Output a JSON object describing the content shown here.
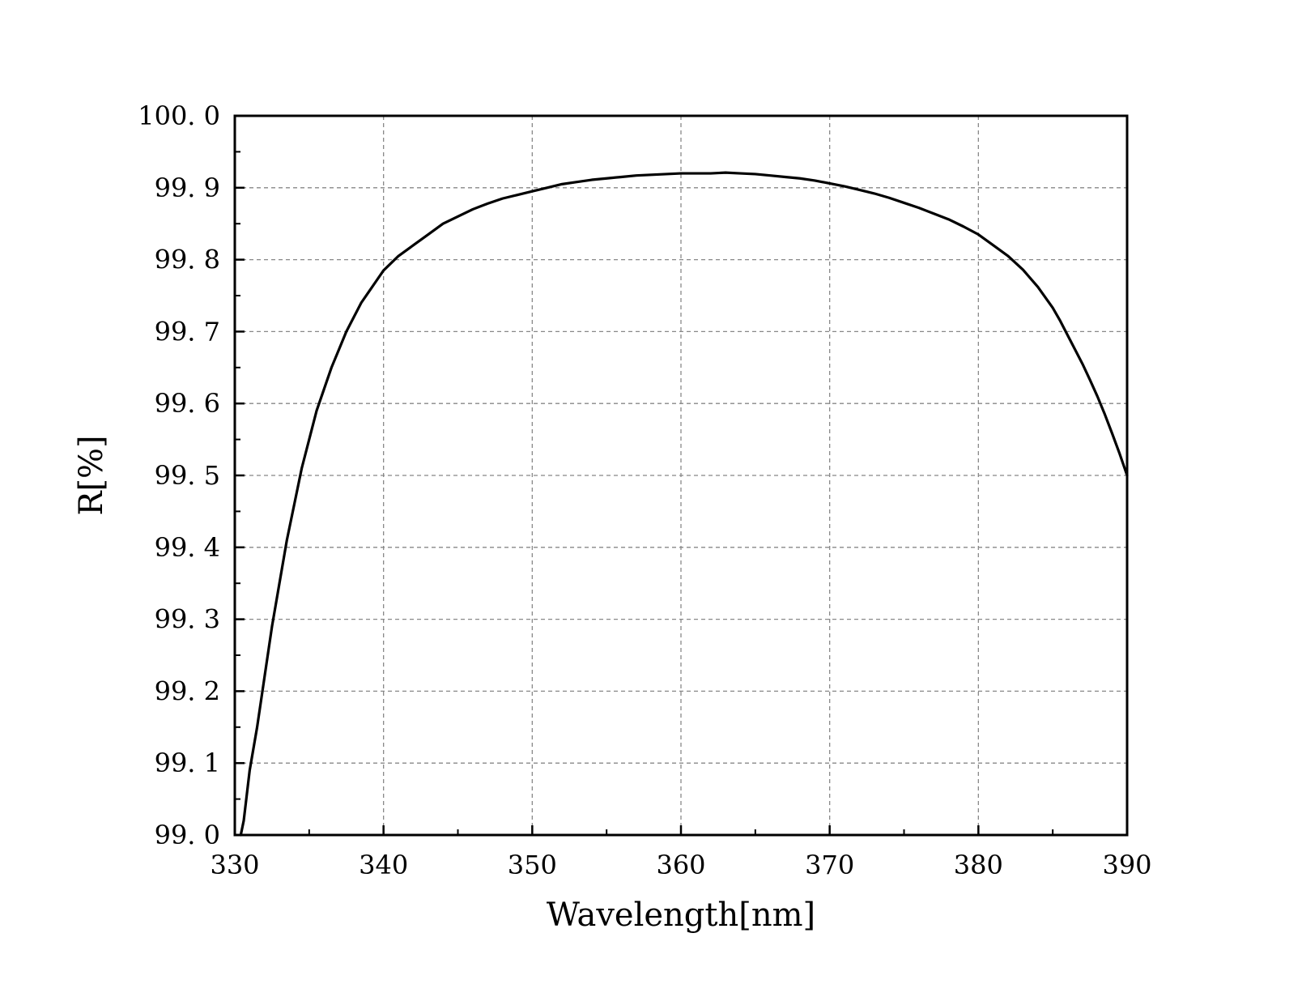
{
  "chart_data": {
    "type": "line",
    "title": "",
    "xlabel": "Wavelength[nm]",
    "ylabel": "R[%]",
    "xlim": [
      330,
      390
    ],
    "ylim": [
      99.0,
      100.0
    ],
    "grid": true,
    "x_ticks": [
      330,
      340,
      350,
      360,
      370,
      380,
      390
    ],
    "x_tick_labels": [
      "330",
      "340",
      "350",
      "360",
      "370",
      "380",
      "390"
    ],
    "y_ticks": [
      99.0,
      99.1,
      99.2,
      99.3,
      99.4,
      99.5,
      99.6,
      99.7,
      99.8,
      99.9,
      100.0
    ],
    "y_tick_labels": [
      "99. 0",
      "99. 1",
      "99. 2",
      "99. 3",
      "99. 4",
      "99. 5",
      "99. 6",
      "99. 7",
      "99. 8",
      "99. 9",
      "100. 0"
    ],
    "line_color": "#000000",
    "grid_color": "#888888",
    "series": [
      {
        "x": [
          330.4,
          330.6,
          331.0,
          331.5,
          332.0,
          332.5,
          333.0,
          333.5,
          334.0,
          334.5,
          335.0,
          335.5,
          336.0,
          336.5,
          337.0,
          337.5,
          338.0,
          338.5,
          339.0,
          339.5,
          340.0,
          341.0,
          342.0,
          343.0,
          344.0,
          345.0,
          346.0,
          347.0,
          348.0,
          349.0,
          350.0,
          351.0,
          352.0,
          353.0,
          354.0,
          355.0,
          356.0,
          357.0,
          358.0,
          359.0,
          360.0,
          361.0,
          362.0,
          363.0,
          364.0,
          365.0,
          366.0,
          367.0,
          368.0,
          369.0,
          370.0,
          371.0,
          372.0,
          373.0,
          374.0,
          375.0,
          376.0,
          377.0,
          378.0,
          379.0,
          380.0,
          381.0,
          382.0,
          383.0,
          384.0,
          385.0,
          385.5,
          386.0,
          386.5,
          387.0,
          387.5,
          388.0,
          388.5,
          389.0,
          389.5,
          390.0
        ],
        "y": [
          99.0,
          99.02,
          99.09,
          99.15,
          99.22,
          99.29,
          99.35,
          99.41,
          99.46,
          99.51,
          99.55,
          99.59,
          99.62,
          99.65,
          99.675,
          99.7,
          99.72,
          99.74,
          99.755,
          99.77,
          99.785,
          99.805,
          99.82,
          99.835,
          99.85,
          99.86,
          99.87,
          99.878,
          99.885,
          99.89,
          99.895,
          99.9,
          99.905,
          99.908,
          99.911,
          99.913,
          99.915,
          99.917,
          99.918,
          99.919,
          99.92,
          99.92,
          99.92,
          99.921,
          99.92,
          99.919,
          99.917,
          99.915,
          99.913,
          99.91,
          99.906,
          99.902,
          99.897,
          99.892,
          99.886,
          99.879,
          99.872,
          99.864,
          99.856,
          99.846,
          99.835,
          99.82,
          99.805,
          99.786,
          99.762,
          99.733,
          99.715,
          99.695,
          99.675,
          99.655,
          99.633,
          99.61,
          99.585,
          99.558,
          99.53,
          99.5
        ]
      }
    ]
  }
}
